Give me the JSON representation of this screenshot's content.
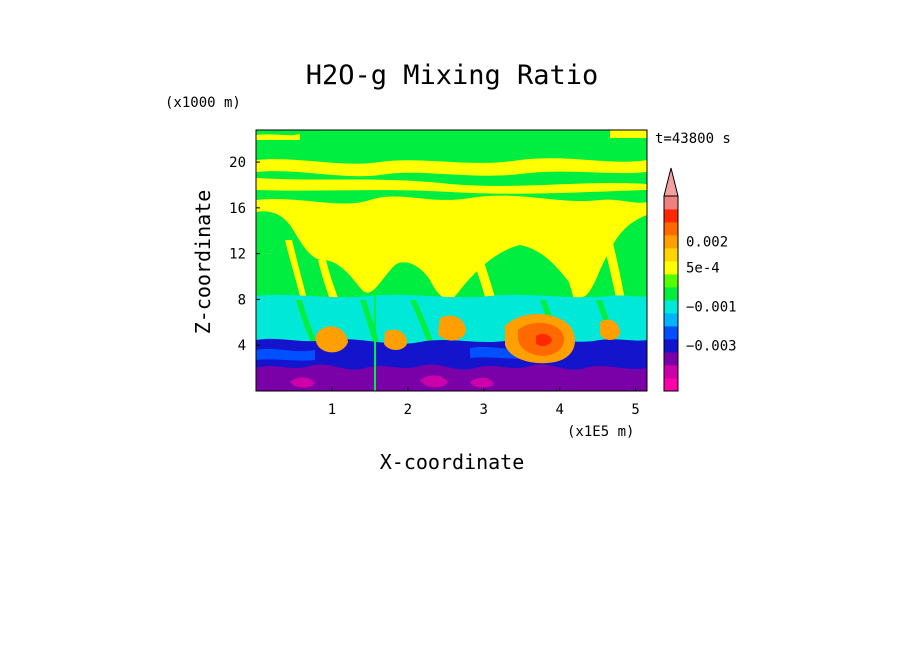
{
  "chart_data": {
    "type": "heatmap",
    "title": "H2O-g Mixing Ratio",
    "xlabel": "X-coordinate",
    "ylabel": "Z-coordinate",
    "x_unit": "(x1E5 m)",
    "y_unit": "(x1000 m)",
    "time_label": "t=43800 s",
    "xlim": [
      0,
      5.15
    ],
    "ylim": [
      0,
      22.8
    ],
    "x_ticks": [
      "1",
      "2",
      "3",
      "4",
      "5"
    ],
    "x_tick_values": [
      1,
      2,
      3,
      4,
      5
    ],
    "y_ticks": [
      "4",
      "8",
      "12",
      "16",
      "20"
    ],
    "y_tick_values": [
      4,
      8,
      12,
      16,
      20
    ],
    "colorbar": {
      "colors": [
        "#ff00aa",
        "#cc00aa",
        "#7a00a8",
        "#1414cc",
        "#0050ff",
        "#00b4ff",
        "#00e8d8",
        "#00ee40",
        "#55ff00",
        "#ffff00",
        "#ffd400",
        "#ffa000",
        "#ff6a00",
        "#ff2800",
        "#f08080",
        "#f4a0a0"
      ],
      "labels": [
        "0.002",
        "5e-4",
        "−0.001",
        "−0.003"
      ],
      "label_level_index": [
        11.5,
        9.5,
        6.5,
        3.5
      ]
    },
    "regions": {
      "top_band_color": "#00ee40",
      "upper_color": "#ffff00",
      "background_color": "#00ee40",
      "mid_band_color": "#00e8d8",
      "low_color": "#1414cc",
      "lowest_color": "#7a00a8",
      "core_color": "#ff6a00",
      "core_inner_color": "#ff2800",
      "warm_color": "#ffa000"
    }
  }
}
